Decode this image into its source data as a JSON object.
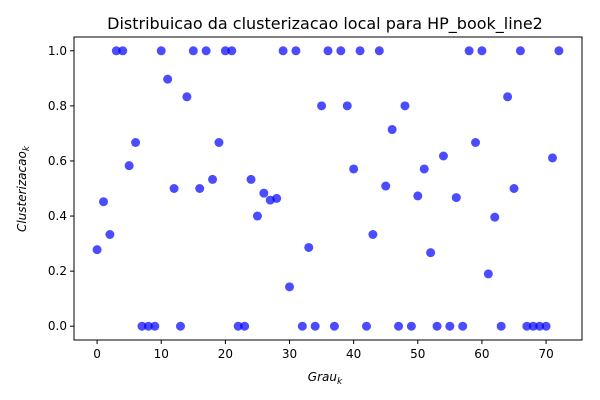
{
  "chart_data": {
    "type": "scatter",
    "title": "Distribuicao da clusterizacao local para HP_book_line2",
    "xlabel": {
      "base": "Grau",
      "sub": "k"
    },
    "ylabel": {
      "base": "Clusterizacao",
      "sub": "k"
    },
    "xlim": [
      -3.6,
      75.6
    ],
    "ylim": [
      -0.05,
      1.05
    ],
    "xticks": [
      0,
      10,
      20,
      30,
      40,
      50,
      60,
      70
    ],
    "yticks": [
      0.0,
      0.2,
      0.4,
      0.6,
      0.8,
      1.0
    ],
    "ytick_labels": [
      "0.0",
      "0.2",
      "0.4",
      "0.6",
      "0.8",
      "1.0"
    ],
    "grid": false,
    "marker_color": "#0000ff",
    "marker_opacity": 0.7,
    "points": [
      [
        0,
        0.278
      ],
      [
        1,
        0.452
      ],
      [
        2,
        0.333
      ],
      [
        3,
        1.0
      ],
      [
        4,
        1.0
      ],
      [
        5,
        0.583
      ],
      [
        6,
        0.667
      ],
      [
        7,
        0.0
      ],
      [
        8,
        0.0
      ],
      [
        9,
        0.0
      ],
      [
        10,
        1.0
      ],
      [
        11,
        0.897
      ],
      [
        12,
        0.5
      ],
      [
        13,
        0.0
      ],
      [
        14,
        0.833
      ],
      [
        15,
        1.0
      ],
      [
        16,
        0.5
      ],
      [
        17,
        1.0
      ],
      [
        18,
        0.533
      ],
      [
        19,
        0.667
      ],
      [
        20,
        1.0
      ],
      [
        21,
        1.0
      ],
      [
        22,
        0.0
      ],
      [
        23,
        0.0
      ],
      [
        24,
        0.533
      ],
      [
        25,
        0.4
      ],
      [
        26,
        0.483
      ],
      [
        27,
        0.458
      ],
      [
        28,
        0.464
      ],
      [
        29,
        1.0
      ],
      [
        30,
        0.143
      ],
      [
        31,
        1.0
      ],
      [
        32,
        0.0
      ],
      [
        33,
        0.286
      ],
      [
        34,
        0.0
      ],
      [
        35,
        0.8
      ],
      [
        36,
        1.0
      ],
      [
        37,
        0.0
      ],
      [
        38,
        1.0
      ],
      [
        39,
        0.8
      ],
      [
        40,
        0.571
      ],
      [
        41,
        1.0
      ],
      [
        42,
        0.0
      ],
      [
        43,
        0.333
      ],
      [
        44,
        1.0
      ],
      [
        45,
        0.509
      ],
      [
        46,
        0.714
      ],
      [
        47,
        0.0
      ],
      [
        48,
        0.8
      ],
      [
        49,
        0.0
      ],
      [
        50,
        0.473
      ],
      [
        51,
        0.571
      ],
      [
        52,
        0.267
      ],
      [
        53,
        0.0
      ],
      [
        54,
        0.618
      ],
      [
        55,
        0.0
      ],
      [
        56,
        0.467
      ],
      [
        57,
        0.0
      ],
      [
        58,
        1.0
      ],
      [
        59,
        0.667
      ],
      [
        60,
        1.0
      ],
      [
        61,
        0.19
      ],
      [
        62,
        0.396
      ],
      [
        63,
        0.0
      ],
      [
        64,
        0.833
      ],
      [
        65,
        0.5
      ],
      [
        66,
        1.0
      ],
      [
        67,
        0.0
      ],
      [
        68,
        0.0
      ],
      [
        69,
        0.0
      ],
      [
        70,
        0.0
      ],
      [
        71,
        0.611
      ],
      [
        72,
        1.0
      ]
    ]
  }
}
